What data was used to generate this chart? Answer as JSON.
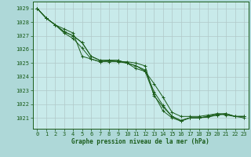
{
  "background_color": "#aed8d8",
  "plot_bg_color": "#c8eaea",
  "grid_color": "#b0c8c8",
  "line_color": "#1a5c1a",
  "xlabel": "Graphe pression niveau de la mer (hPa)",
  "xlabel_color": "#1a5c1a",
  "tick_color": "#1a5c1a",
  "ylim": [
    1020.2,
    1029.5
  ],
  "xlim": [
    -0.5,
    23.5
  ],
  "yticks": [
    1021,
    1022,
    1023,
    1024,
    1025,
    1026,
    1027,
    1028,
    1029
  ],
  "xticks": [
    0,
    1,
    2,
    3,
    4,
    5,
    6,
    7,
    8,
    9,
    10,
    11,
    12,
    13,
    14,
    15,
    16,
    17,
    18,
    19,
    20,
    21,
    22,
    23
  ],
  "series": [
    [
      1029.0,
      1028.3,
      1027.8,
      1027.5,
      1027.2,
      1025.5,
      1025.3,
      1025.1,
      1025.1,
      1025.1,
      1025.1,
      1025.0,
      1024.8,
      1022.6,
      1021.8,
      1021.1,
      1020.8,
      1021.0,
      1021.0,
      1021.1,
      1021.3,
      1021.2,
      1021.1,
      1021.1
    ],
    [
      1029.0,
      1028.3,
      1027.8,
      1027.2,
      1026.8,
      1026.1,
      1025.3,
      1025.1,
      1025.2,
      1025.1,
      1025.0,
      1024.6,
      1024.4,
      1023.5,
      1022.5,
      1021.4,
      1021.1,
      1021.1,
      1021.1,
      1021.2,
      1021.3,
      1021.3,
      1021.1,
      1021.1
    ],
    [
      1029.0,
      1028.3,
      1027.8,
      1027.3,
      1027.0,
      1026.5,
      1025.5,
      1025.2,
      1025.2,
      1025.2,
      1025.0,
      1024.8,
      1024.5,
      1022.9,
      1021.9,
      1021.1,
      1020.8,
      1021.0,
      1021.0,
      1021.1,
      1021.2,
      1021.3,
      1021.1,
      1021.1
    ],
    [
      1029.0,
      1028.3,
      1027.8,
      1027.3,
      1027.0,
      1026.5,
      1025.5,
      1025.2,
      1025.2,
      1025.2,
      1025.0,
      1024.8,
      1024.4,
      1022.7,
      1021.5,
      1021.0,
      1020.75,
      1021.0,
      1021.0,
      1021.05,
      1021.2,
      1021.3,
      1021.1,
      1021.0
    ]
  ]
}
